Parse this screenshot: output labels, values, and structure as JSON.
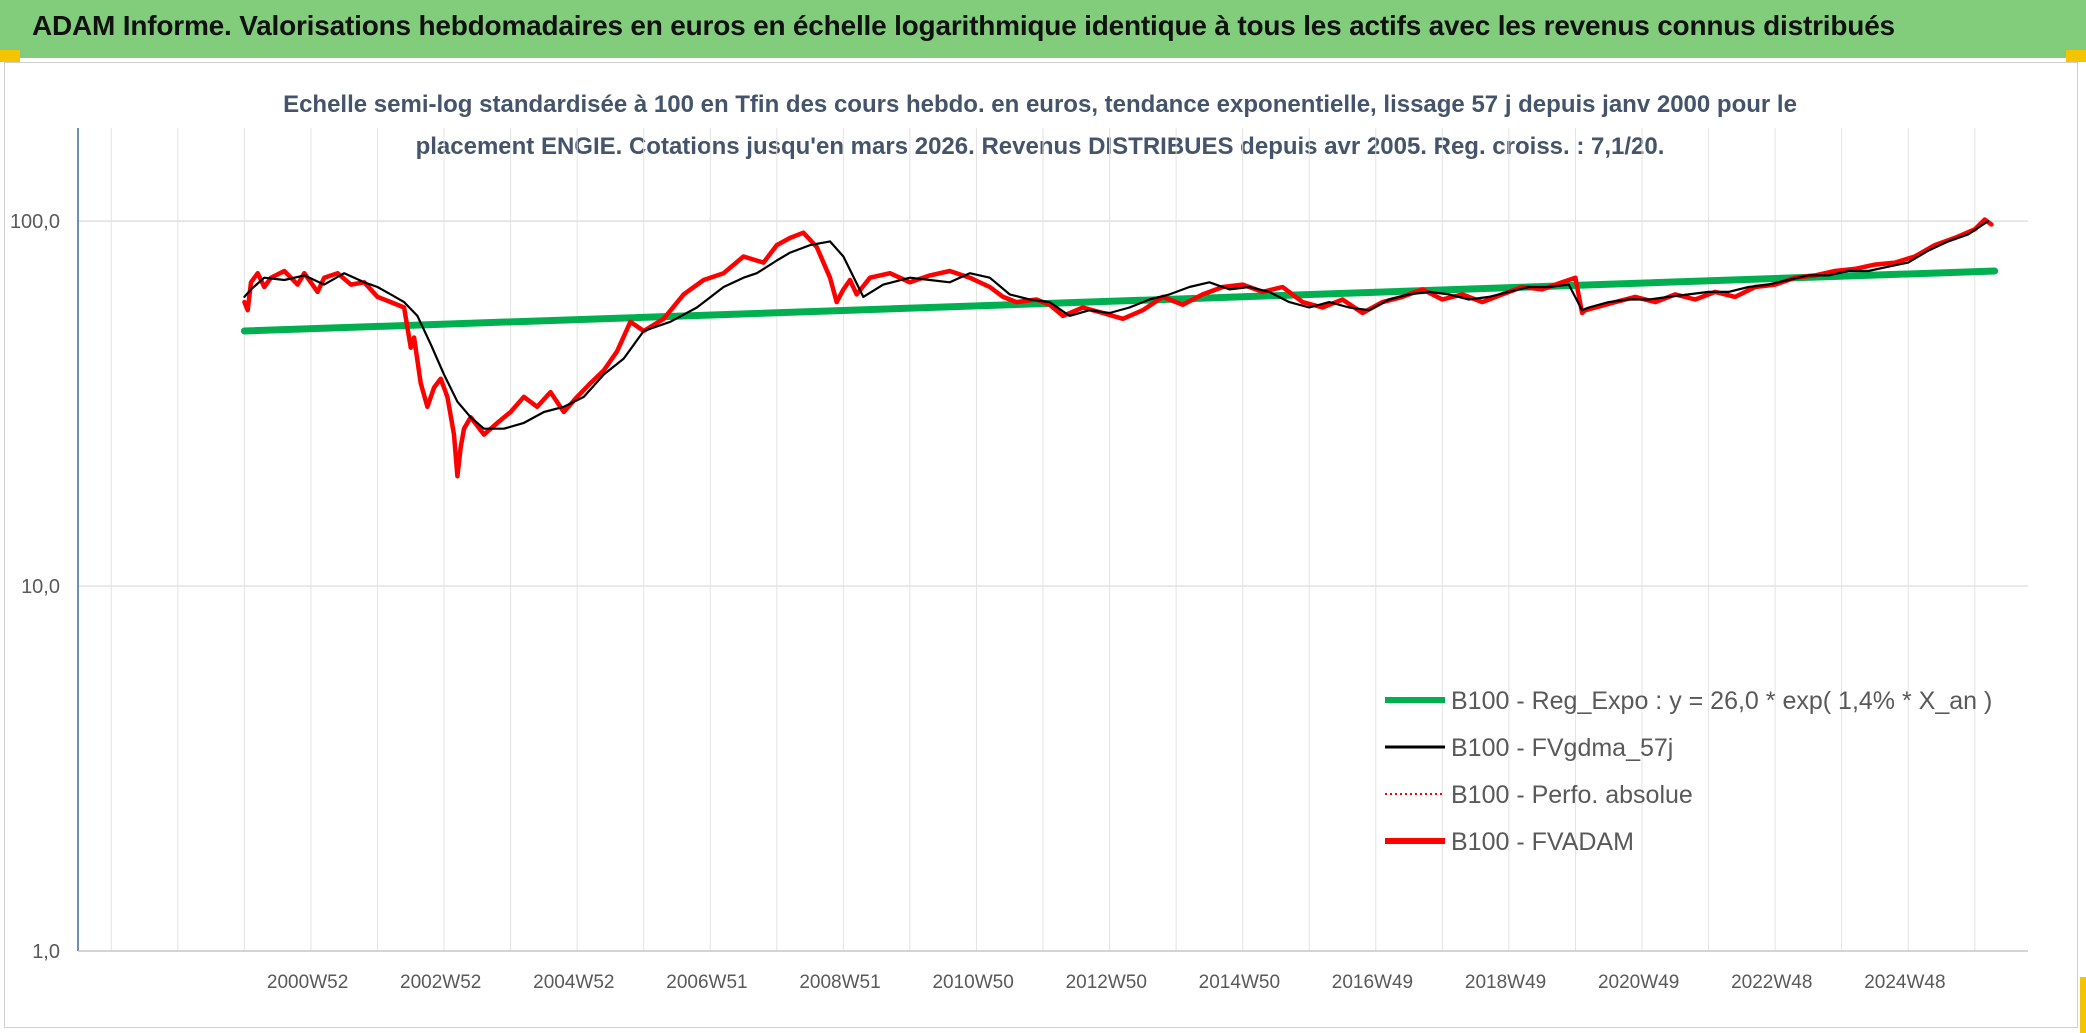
{
  "header": {
    "title": "ADAM Informe. Valorisations hebdomadaires en euros en échelle logarithmique identique à tous les actifs avec les revenus connus distribués"
  },
  "colors": {
    "banner": "#82cd7c",
    "accent_corner": "#f5c400",
    "regression": "#00b050",
    "smoothed": "#000000",
    "perfo": "#ff0000",
    "fvadam": "#ff0000"
  },
  "chart_data": {
    "type": "line",
    "title_line1": "Echelle semi-log standardisée à 100 en Tfin des cours hebdo. en euros, tendance exponentielle, lissage 57 j depuis janv 2000 pour le",
    "title_line2": "placement ENGIE. Cotations jusqu'en mars 2026. Revenus DISTRIBUES depuis avr 2005. Reg. croiss. : 7,1/20.",
    "y_scale": "log",
    "ylim": [
      1,
      180
    ],
    "y_ticks": [
      {
        "value": 100,
        "label": "100,0"
      },
      {
        "value": 10,
        "label": "10,0"
      },
      {
        "value": 1,
        "label": "1,0"
      }
    ],
    "x_range": [
      1997.5,
      2026.8
    ],
    "x_ticks": [
      {
        "value": 2000.95,
        "label": "2000W52"
      },
      {
        "value": 2002.95,
        "label": "2002W52"
      },
      {
        "value": 2004.95,
        "label": "2004W52"
      },
      {
        "value": 2006.95,
        "label": "2006W51"
      },
      {
        "value": 2008.95,
        "label": "2008W51"
      },
      {
        "value": 2010.95,
        "label": "2010W50"
      },
      {
        "value": 2012.95,
        "label": "2012W50"
      },
      {
        "value": 2014.95,
        "label": "2014W50"
      },
      {
        "value": 2016.95,
        "label": "2016W49"
      },
      {
        "value": 2018.95,
        "label": "2018W49"
      },
      {
        "value": 2020.95,
        "label": "2020W49"
      },
      {
        "value": 2022.95,
        "label": "2022W48"
      },
      {
        "value": 2024.95,
        "label": "2024W48"
      }
    ],
    "grid": true,
    "legend_position": "bottom-right",
    "series": [
      {
        "name": "B100 - Reg_Expo : y = 26,0 * exp( 1,4% *  X_an )",
        "style": "thick-line",
        "x": [
          2000.0,
          2026.3
        ],
        "y": [
          50,
          73
        ]
      },
      {
        "name": "B100 - FVgdma_57j",
        "style": "thin-line",
        "x": [
          2000.0,
          2000.1,
          2000.3,
          2000.6,
          2000.9,
          2001.2,
          2001.5,
          2001.8,
          2002.0,
          2002.2,
          2002.4,
          2002.6,
          2002.8,
          2003.0,
          2003.2,
          2003.4,
          2003.6,
          2003.9,
          2004.2,
          2004.5,
          2004.8,
          2005.1,
          2005.4,
          2005.7,
          2006.0,
          2006.4,
          2006.8,
          2007.2,
          2007.5,
          2007.7,
          2008.0,
          2008.2,
          2008.5,
          2008.8,
          2009.0,
          2009.3,
          2009.6,
          2010.0,
          2010.3,
          2010.6,
          2010.9,
          2011.2,
          2011.5,
          2011.8,
          2012.1,
          2012.4,
          2012.7,
          2013.0,
          2013.3,
          2013.6,
          2013.9,
          2014.2,
          2014.5,
          2014.8,
          2015.1,
          2015.4,
          2015.7,
          2016.0,
          2016.3,
          2016.6,
          2016.9,
          2017.2,
          2017.5,
          2017.8,
          2018.1,
          2018.4,
          2018.7,
          2019.0,
          2019.3,
          2019.6,
          2019.9,
          2020.1,
          2020.2,
          2020.5,
          2020.8,
          2021.1,
          2021.4,
          2021.7,
          2022.0,
          2022.3,
          2022.6,
          2022.9,
          2023.2,
          2023.5,
          2023.8,
          2024.1,
          2024.4,
          2024.7,
          2025.0,
          2025.3,
          2025.6,
          2025.9,
          2026.2
        ],
        "y": [
          62,
          65,
          70,
          69,
          71,
          67,
          72,
          68,
          66,
          63,
          60,
          55,
          46,
          38,
          32,
          29,
          27,
          27,
          28,
          30,
          31,
          33,
          38,
          42,
          50,
          53,
          58,
          66,
          70,
          72,
          78,
          82,
          86,
          88,
          80,
          62,
          67,
          70,
          69,
          68,
          72,
          70,
          63,
          61,
          60,
          55,
          57,
          56,
          58,
          61,
          63,
          66,
          68,
          65,
          66,
          64,
          60,
          58,
          60,
          58,
          57,
          61,
          63,
          64,
          63,
          61,
          62,
          64,
          66,
          66,
          67,
          57,
          58,
          60,
          61,
          61,
          62,
          63,
          64,
          64,
          66,
          67,
          69,
          71,
          71,
          73,
          73,
          75,
          77,
          83,
          88,
          92,
          100
        ]
      },
      {
        "name": "B100 - Perfo. absolue",
        "style": "dotted-line",
        "x": [],
        "y": []
      },
      {
        "name": "B100 - FVADAM",
        "style": "thick-line",
        "x": [
          2000.0,
          2000.05,
          2000.1,
          2000.2,
          2000.3,
          2000.4,
          2000.6,
          2000.8,
          2000.9,
          2001.1,
          2001.2,
          2001.4,
          2001.6,
          2001.8,
          2002.0,
          2002.2,
          2002.4,
          2002.5,
          2002.55,
          2002.65,
          2002.75,
          2002.85,
          2002.95,
          2003.05,
          2003.15,
          2003.2,
          2003.25,
          2003.3,
          2003.4,
          2003.6,
          2003.8,
          2004.0,
          2004.2,
          2004.4,
          2004.6,
          2004.8,
          2005.0,
          2005.2,
          2005.4,
          2005.6,
          2005.8,
          2006.0,
          2006.3,
          2006.6,
          2006.9,
          2007.2,
          2007.5,
          2007.8,
          2008.0,
          2008.2,
          2008.4,
          2008.6,
          2008.8,
          2008.9,
          2009.0,
          2009.1,
          2009.2,
          2009.4,
          2009.7,
          2010.0,
          2010.3,
          2010.6,
          2010.9,
          2011.2,
          2011.4,
          2011.6,
          2011.9,
          2012.1,
          2012.3,
          2012.6,
          2012.9,
          2013.2,
          2013.5,
          2013.8,
          2014.1,
          2014.4,
          2014.7,
          2015.0,
          2015.3,
          2015.6,
          2015.9,
          2016.2,
          2016.5,
          2016.8,
          2017.1,
          2017.4,
          2017.7,
          2018.0,
          2018.3,
          2018.6,
          2018.9,
          2019.2,
          2019.5,
          2019.8,
          2020.0,
          2020.1,
          2020.15,
          2020.3,
          2020.6,
          2020.9,
          2021.2,
          2021.5,
          2021.8,
          2022.1,
          2022.4,
          2022.7,
          2023.0,
          2023.3,
          2023.6,
          2023.9,
          2024.2,
          2024.5,
          2024.8,
          2025.1,
          2025.4,
          2025.7,
          2026.0,
          2026.15,
          2026.25
        ],
        "y": [
          60,
          57,
          68,
          72,
          66,
          70,
          73,
          67,
          72,
          64,
          70,
          72,
          67,
          68,
          62,
          60,
          58,
          45,
          48,
          36,
          31,
          35,
          37,
          33,
          26,
          20,
          24,
          27,
          29,
          26,
          28,
          30,
          33,
          31,
          34,
          30,
          33,
          36,
          39,
          44,
          53,
          50,
          54,
          63,
          69,
          72,
          80,
          77,
          86,
          90,
          93,
          85,
          70,
          60,
          65,
          69,
          63,
          70,
          72,
          68,
          71,
          73,
          70,
          66,
          62,
          60,
          61,
          59,
          55,
          58,
          56,
          54,
          57,
          62,
          59,
          63,
          66,
          67,
          64,
          66,
          60,
          58,
          61,
          56,
          60,
          62,
          65,
          61,
          63,
          60,
          63,
          66,
          65,
          68,
          70,
          56,
          57,
          58,
          60,
          62,
          60,
          63,
          61,
          64,
          62,
          66,
          67,
          70,
          71,
          73,
          74,
          76,
          77,
          80,
          86,
          90,
          95,
          101,
          98
        ]
      }
    ]
  }
}
